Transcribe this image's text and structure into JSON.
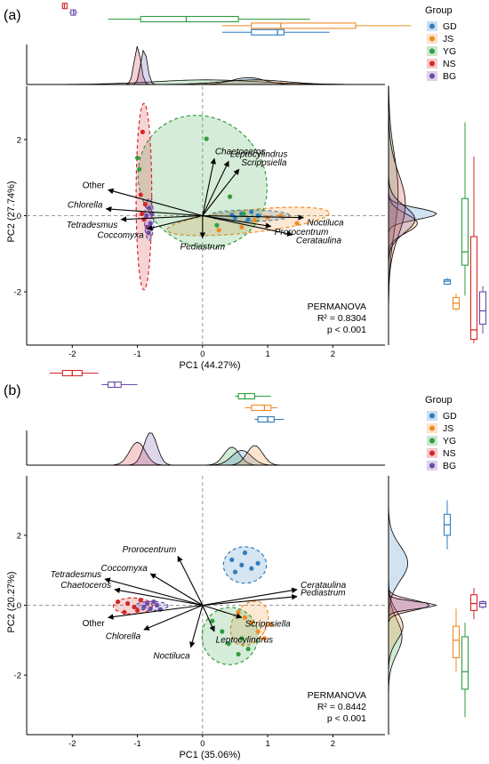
{
  "colors": {
    "GD": "#2F7DBF",
    "JS": "#F08A24",
    "YG": "#2E9E3E",
    "NS": "#D62728",
    "BG": "#6A4BA8"
  },
  "chart_data": [
    {
      "panel_label": "(a)",
      "type": "scatter",
      "xlabel": "PC1 (44.27%)",
      "ylabel": "PC2 (27.74%)",
      "xlim": [
        -2.7,
        2.8
      ],
      "ylim": [
        -3.4,
        3.4
      ],
      "xticks": [
        -2,
        -1,
        0,
        1,
        2
      ],
      "yticks": [
        -2,
        0,
        2
      ],
      "grid": false,
      "reference_lines": {
        "x": 0,
        "y": 0
      },
      "annotation": {
        "title": "PERMANOVA",
        "r2": "R² = 0.8304",
        "p": "p < 0.001"
      },
      "legend": {
        "title": "Group",
        "position": "top-right",
        "entries": [
          "GD",
          "JS",
          "YG",
          "NS",
          "BG"
        ]
      },
      "series": [
        {
          "name": "GD",
          "points": [
            [
              0.45,
              0.02
            ],
            [
              0.6,
              0.05
            ],
            [
              0.75,
              0.1
            ],
            [
              0.85,
              0.0
            ],
            [
              0.5,
              -0.05
            ],
            [
              0.7,
              -0.1
            ]
          ],
          "ellipse": {
            "cx": 0.72,
            "cy": 0.0,
            "rx": 0.62,
            "ry": 0.15,
            "angle": 0
          }
        },
        {
          "name": "JS",
          "points": [
            [
              0.25,
              -0.38
            ],
            [
              0.8,
              -0.12
            ],
            [
              1.0,
              -0.05
            ],
            [
              1.45,
              -0.2
            ],
            [
              1.2,
              0.0
            ],
            [
              0.6,
              -0.3
            ]
          ],
          "ellipse": {
            "cx": 0.7,
            "cy": -0.15,
            "rx": 1.25,
            "ry": 0.3,
            "angle": 6
          }
        },
        {
          "name": "YG",
          "points": [
            [
              -0.97,
              1.22
            ],
            [
              -1.0,
              1.52
            ],
            [
              0.06,
              2.02
            ],
            [
              0.42,
              0.5
            ],
            [
              0.22,
              -0.25
            ],
            [
              0.63,
              0.05
            ]
          ],
          "ellipse": {
            "cx": 0.0,
            "cy": 0.9,
            "rx": 0.95,
            "ry": 1.8,
            "angle": 38
          }
        },
        {
          "name": "NS",
          "points": [
            [
              -0.92,
              2.2
            ],
            [
              -0.95,
              0.55
            ],
            [
              -0.9,
              -0.1
            ],
            [
              -0.85,
              -0.3
            ],
            [
              -0.93,
              0.05
            ],
            [
              -0.88,
              0.3
            ]
          ],
          "ellipse": {
            "cx": -0.9,
            "cy": 0.5,
            "rx": 0.12,
            "ry": 2.45,
            "angle": 0
          }
        },
        {
          "name": "BG",
          "points": [
            [
              -0.82,
              0.2
            ],
            [
              -0.86,
              0.0
            ],
            [
              -0.8,
              -0.2
            ],
            [
              -0.83,
              -0.45
            ],
            [
              -0.78,
              0.05
            ],
            [
              -0.84,
              -0.3
            ]
          ],
          "ellipse": {
            "cx": -0.82,
            "cy": -0.1,
            "rx": 0.07,
            "ry": 0.55,
            "angle": 0
          }
        }
      ],
      "loadings": [
        {
          "label": "Chaetoceros",
          "x": 0.18,
          "y": 1.5
        },
        {
          "label": "Leptocylindrus",
          "x": 0.4,
          "y": 1.43
        },
        {
          "label": "Scrippsiella",
          "x": 0.56,
          "y": 1.22
        },
        {
          "label": "Other",
          "x": -1.45,
          "y": 0.68
        },
        {
          "label": "Chlorella",
          "x": -1.48,
          "y": 0.18
        },
        {
          "label": "Tetradesmus",
          "x": -1.25,
          "y": -0.1
        },
        {
          "label": "Coccomyxa",
          "x": -0.85,
          "y": -0.35
        },
        {
          "label": "Noctiluca",
          "x": 1.55,
          "y": -0.05
        },
        {
          "label": "Prorocentrum",
          "x": 1.05,
          "y": -0.28
        },
        {
          "label": "Cerataulina",
          "x": 1.38,
          "y": -0.5
        },
        {
          "label": "Pediastrum",
          "x": 0.0,
          "y": -0.58
        }
      ],
      "top_boxplots": [
        {
          "group": "NS",
          "q1": -2.15,
          "median": -2.12,
          "q3": -2.08,
          "min": -2.16,
          "max": -2.07
        },
        {
          "group": "BG",
          "q1": -2.02,
          "median": -1.98,
          "q3": -1.95,
          "min": -2.05,
          "max": -1.92
        },
        {
          "group": "YG",
          "q1": -0.95,
          "median": -0.25,
          "q3": 0.55,
          "min": -1.45,
          "max": 1.65
        },
        {
          "group": "JS",
          "q1": 0.75,
          "median": 1.2,
          "q3": 2.35,
          "min": 0.3,
          "max": 3.2
        },
        {
          "group": "GD",
          "q1": 0.75,
          "median": 1.15,
          "q3": 1.25,
          "min": 0.3,
          "max": 1.95
        }
      ],
      "right_boxplots": [
        {
          "group": "GD",
          "q1": -1.8,
          "median": -1.72,
          "q3": -1.68,
          "min": -1.82,
          "max": -1.64
        },
        {
          "group": "JS",
          "q1": -2.45,
          "median": -2.3,
          "q3": -2.15,
          "min": -2.5,
          "max": -2.05
        },
        {
          "group": "YG",
          "q1": -1.3,
          "median": -0.95,
          "q3": 0.45,
          "min": -2.1,
          "max": 2.45
        },
        {
          "group": "NS",
          "q1": -3.25,
          "median": -3.0,
          "q3": -0.55,
          "min": -3.35,
          "max": 1.55
        },
        {
          "group": "BG",
          "q1": -2.85,
          "median": -2.5,
          "q3": -2.0,
          "min": -3.1,
          "max": -1.85
        }
      ],
      "top_density_peaks": [
        {
          "group": "NS",
          "center": -1.0,
          "width": 0.05,
          "height": 1.0
        },
        {
          "group": "BG",
          "center": -0.9,
          "width": 0.05,
          "height": 0.92
        },
        {
          "group": "YG",
          "center": 0.05,
          "width": 0.8,
          "height": 0.12
        },
        {
          "group": "JS",
          "center": 0.8,
          "width": 0.5,
          "height": 0.12
        },
        {
          "group": "GD",
          "center": 0.7,
          "width": 0.25,
          "height": 0.18
        }
      ],
      "right_density_peaks": [
        {
          "group": "GD",
          "center": 0.05,
          "width": 0.15,
          "height": 1.0
        },
        {
          "group": "JS",
          "center": -0.2,
          "width": 0.25,
          "height": 0.6
        },
        {
          "group": "YG",
          "center": 0.6,
          "width": 1.0,
          "height": 0.2
        },
        {
          "group": "NS",
          "center": 0.3,
          "width": 0.8,
          "height": 0.35
        },
        {
          "group": "BG",
          "center": -0.1,
          "width": 0.35,
          "height": 0.55
        }
      ]
    },
    {
      "panel_label": "(b)",
      "type": "scatter",
      "xlabel": "PC1 (35.06%)",
      "ylabel": "PC2 (20.27%)",
      "xlim": [
        -2.7,
        2.8
      ],
      "ylim": [
        -3.7,
        3.7
      ],
      "xticks": [
        -2,
        -1,
        0,
        1,
        2
      ],
      "yticks": [
        -2,
        0,
        2
      ],
      "grid": false,
      "reference_lines": {
        "x": 0,
        "y": 0
      },
      "annotation": {
        "title": "PERMANOVA",
        "r2": "R² = 0.8442",
        "p": "p < 0.001"
      },
      "legend": {
        "title": "Group",
        "position": "top-right",
        "entries": [
          "GD",
          "JS",
          "YG",
          "NS",
          "BG"
        ]
      },
      "series": [
        {
          "name": "GD",
          "points": [
            [
              0.45,
              1.3
            ],
            [
              0.6,
              1.15
            ],
            [
              0.75,
              1.05
            ],
            [
              0.65,
              1.5
            ],
            [
              0.85,
              1.2
            ],
            [
              0.5,
              0.95
            ]
          ],
          "ellipse": {
            "cx": 0.65,
            "cy": 1.15,
            "rx": 0.33,
            "ry": 0.52,
            "angle": 0
          }
        },
        {
          "name": "JS",
          "points": [
            [
              0.55,
              -0.2
            ],
            [
              0.75,
              -0.5
            ],
            [
              0.85,
              -0.75
            ],
            [
              1.05,
              -0.55
            ],
            [
              0.65,
              -0.35
            ],
            [
              0.95,
              -0.95
            ]
          ],
          "ellipse": {
            "cx": 0.72,
            "cy": -0.52,
            "rx": 0.26,
            "ry": 0.68,
            "angle": -30
          }
        },
        {
          "name": "YG",
          "points": [
            [
              0.15,
              -0.45
            ],
            [
              0.4,
              -1.1
            ],
            [
              0.55,
              -1.4
            ],
            [
              0.7,
              -1.25
            ],
            [
              0.3,
              -0.75
            ],
            [
              0.6,
              -0.95
            ]
          ],
          "ellipse": {
            "cx": 0.42,
            "cy": -0.88,
            "rx": 0.43,
            "ry": 0.82,
            "angle": -10
          }
        },
        {
          "name": "NS",
          "points": [
            [
              -1.3,
              0.1
            ],
            [
              -1.2,
              -0.2
            ],
            [
              -1.05,
              -0.05
            ],
            [
              -0.95,
              0.15
            ],
            [
              -1.15,
              0.05
            ],
            [
              -1.0,
              -0.15
            ]
          ],
          "ellipse": {
            "cx": -1.07,
            "cy": -0.02,
            "rx": 0.3,
            "ry": 0.23,
            "angle": 0
          }
        },
        {
          "name": "BG",
          "points": [
            [
              -0.85,
              0.05
            ],
            [
              -0.8,
              -0.1
            ],
            [
              -0.75,
              0.1
            ],
            [
              -0.7,
              0.0
            ],
            [
              -0.9,
              -0.05
            ],
            [
              -0.65,
              -0.12
            ]
          ],
          "ellipse": {
            "cx": -0.78,
            "cy": -0.02,
            "rx": 0.25,
            "ry": 0.13,
            "angle": 0
          }
        }
      ],
      "loadings": [
        {
          "label": "Prorocentrum",
          "x": -0.38,
          "y": 1.4
        },
        {
          "label": "Coccomyxa",
          "x": -0.8,
          "y": 0.9
        },
        {
          "label": "Tetradesmus",
          "x": -1.5,
          "y": 0.75
        },
        {
          "label": "Chaetoceros",
          "x": -1.35,
          "y": 0.45
        },
        {
          "label": "Other",
          "x": -1.45,
          "y": -0.35
        },
        {
          "label": "Chlorella",
          "x": -0.9,
          "y": -0.7
        },
        {
          "label": "Cerataulina",
          "x": 1.45,
          "y": 0.45
        },
        {
          "label": "Pediastrum",
          "x": 1.45,
          "y": 0.25
        },
        {
          "label": "Scrippsiella",
          "x": 0.6,
          "y": -0.35
        },
        {
          "label": "Leptocylindrus",
          "x": 0.18,
          "y": -0.75
        },
        {
          "label": "Noctiluca",
          "x": -0.18,
          "y": -1.2
        }
      ],
      "top_boxplots": [
        {
          "group": "NS",
          "q1": -2.15,
          "median": -2.0,
          "q3": -1.85,
          "min": -2.35,
          "max": -1.6
        },
        {
          "group": "BG",
          "q1": -1.45,
          "median": -1.35,
          "q3": -1.25,
          "min": -1.55,
          "max": -1.0
        },
        {
          "group": "YG",
          "q1": 0.55,
          "median": 0.65,
          "q3": 0.8,
          "min": 0.5,
          "max": 1.05
        },
        {
          "group": "JS",
          "q1": 0.75,
          "median": 0.95,
          "q3": 1.05,
          "min": 0.65,
          "max": 1.15
        },
        {
          "group": "GD",
          "q1": 0.85,
          "median": 1.0,
          "q3": 1.1,
          "min": 0.8,
          "max": 1.25
        }
      ],
      "right_boxplots": [
        {
          "group": "GD",
          "q1": 2.0,
          "median": 2.3,
          "q3": 2.6,
          "min": 1.6,
          "max": 3.0
        },
        {
          "group": "JS",
          "q1": -1.5,
          "median": -1.0,
          "q3": -0.6,
          "min": -1.9,
          "max": -0.1
        },
        {
          "group": "YG",
          "q1": -2.4,
          "median": -1.9,
          "q3": -0.9,
          "min": -3.2,
          "max": -0.5
        },
        {
          "group": "NS",
          "q1": -0.15,
          "median": 0.05,
          "q3": 0.3,
          "min": -0.4,
          "max": 0.5
        },
        {
          "group": "BG",
          "q1": -0.05,
          "median": 0.05,
          "q3": 0.1,
          "min": -0.1,
          "max": 0.15
        }
      ],
      "top_density_peaks": [
        {
          "group": "NS",
          "center": -1.0,
          "width": 0.12,
          "height": 0.7
        },
        {
          "group": "BG",
          "center": -0.8,
          "width": 0.1,
          "height": 1.0
        },
        {
          "group": "YG",
          "center": 0.45,
          "width": 0.12,
          "height": 0.55
        },
        {
          "group": "JS",
          "center": 0.8,
          "width": 0.12,
          "height": 0.6
        },
        {
          "group": "GD",
          "center": 0.6,
          "width": 0.15,
          "height": 0.45
        }
      ],
      "right_density_peaks": [
        {
          "group": "GD",
          "center": 1.2,
          "width": 0.5,
          "height": 0.4
        },
        {
          "group": "JS",
          "center": -0.6,
          "width": 0.4,
          "height": 0.3
        },
        {
          "group": "YG",
          "center": -0.9,
          "width": 0.5,
          "height": 0.28
        },
        {
          "group": "NS",
          "center": 0.0,
          "width": 0.15,
          "height": 0.85
        },
        {
          "group": "BG",
          "center": 0.0,
          "width": 0.1,
          "height": 1.0
        }
      ]
    }
  ]
}
